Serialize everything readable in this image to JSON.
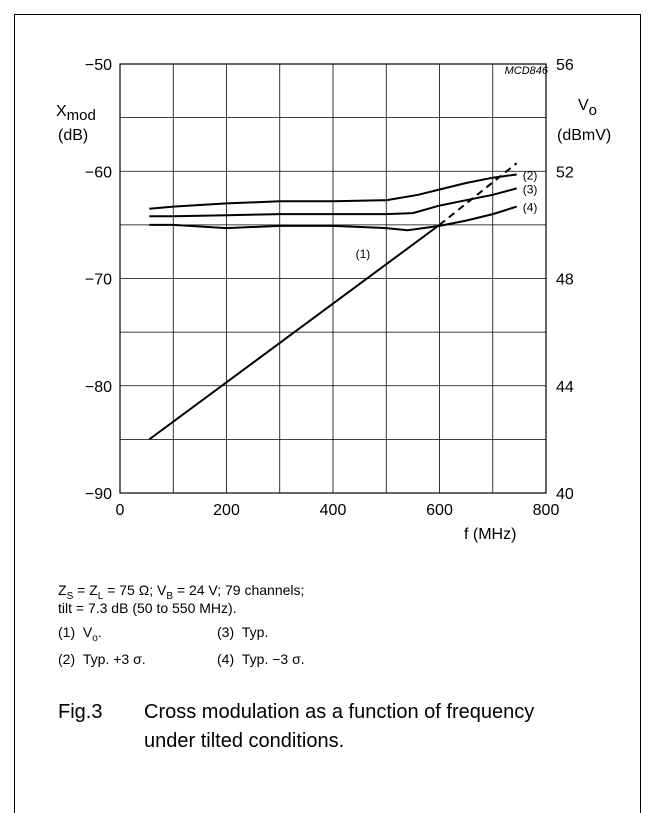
{
  "chart_data": {
    "type": "line",
    "code": "MCD846",
    "x": {
      "label": "f (MHz)",
      "range": [
        0,
        800
      ],
      "ticks": [
        0,
        200,
        400,
        600,
        800
      ],
      "tick_labels": [
        "0",
        "200",
        "400",
        "600",
        "800"
      ],
      "grid_step": 100
    },
    "y_left": {
      "label_main": "X",
      "label_sub": "mod",
      "unit": "(dB)",
      "range": [
        -90,
        -50
      ],
      "ticks": [
        -90,
        -80,
        -70,
        -60,
        -50
      ],
      "tick_labels": [
        "−90",
        "−80",
        "−70",
        "−60",
        "−50"
      ],
      "grid_step": 5
    },
    "y_right": {
      "label_main": "V",
      "label_sub": "o",
      "unit": "(dBmV)",
      "range": [
        40,
        56
      ],
      "ticks": [
        40,
        44,
        48,
        52,
        56
      ],
      "tick_labels": [
        "40",
        "44",
        "48",
        "52",
        "56"
      ]
    },
    "grid": true,
    "series": [
      {
        "name": "(1)",
        "axis": "right",
        "label_at": [
          470,
          48.76
        ],
        "solid": [
          [
            55,
            42
          ],
          [
            600,
            50
          ]
        ],
        "dashed": [
          [
            600,
            50
          ],
          [
            745,
            52.3
          ]
        ]
      },
      {
        "name": "(2)",
        "axis": "left",
        "points": [
          [
            55,
            -63.5
          ],
          [
            100,
            -63.3
          ],
          [
            200,
            -63.0
          ],
          [
            300,
            -62.8
          ],
          [
            400,
            -62.8
          ],
          [
            500,
            -62.7
          ],
          [
            560,
            -62.2
          ],
          [
            600,
            -61.7
          ],
          [
            650,
            -61.1
          ],
          [
            700,
            -60.6
          ],
          [
            745,
            -60.3
          ]
        ]
      },
      {
        "name": "(3)",
        "axis": "left",
        "points": [
          [
            55,
            -64.2
          ],
          [
            100,
            -64.2
          ],
          [
            200,
            -64.1
          ],
          [
            300,
            -64.0
          ],
          [
            400,
            -64.0
          ],
          [
            500,
            -64.0
          ],
          [
            550,
            -63.9
          ],
          [
            600,
            -63.2
          ],
          [
            650,
            -62.7
          ],
          [
            700,
            -62.2
          ],
          [
            745,
            -61.6
          ]
        ]
      },
      {
        "name": "(4)",
        "axis": "left",
        "points": [
          [
            55,
            -65.0
          ],
          [
            100,
            -65.0
          ],
          [
            200,
            -65.3
          ],
          [
            300,
            -65.1
          ],
          [
            400,
            -65.1
          ],
          [
            500,
            -65.3
          ],
          [
            540,
            -65.5
          ],
          [
            600,
            -65.1
          ],
          [
            650,
            -64.6
          ],
          [
            700,
            -64.0
          ],
          [
            745,
            -63.3
          ]
        ]
      }
    ]
  },
  "notes": {
    "line1": {
      "zs": "Z",
      "zs_sub": "S",
      "eq1": " = Z",
      "zl_sub": "L",
      "eq2": " = 75 Ω; V",
      "vb_sub": "B",
      "eq3": " = 24 V; 79 channels;"
    },
    "line2": "tilt = 7.3 dB (50 to 550 MHz)."
  },
  "legend": {
    "item1": {
      "key": "(1)",
      "text": "V",
      "sub": "o",
      "tail": "."
    },
    "item2": {
      "key": "(2)",
      "text": "Typ. +3 σ."
    },
    "item3": {
      "key": "(3)",
      "text": "Typ."
    },
    "item4": {
      "key": "(4)",
      "text": "Typ. −3 σ."
    }
  },
  "caption": {
    "number": "Fig.3",
    "text": "Cross modulation as a function of frequency under tilted conditions."
  }
}
